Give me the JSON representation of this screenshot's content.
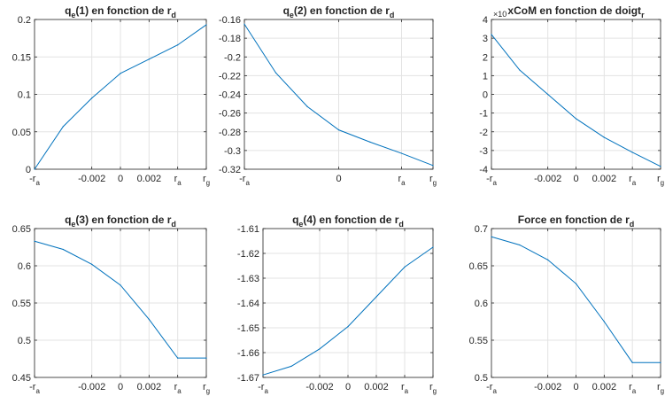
{
  "figure": {
    "line_color": "#0072BD",
    "grid_color": "#e3e3e3",
    "axis_color": "#262626"
  },
  "chart_data": [
    {
      "type": "line",
      "title": [
        "q",
        "e",
        "(1) en fonction de r",
        "d"
      ],
      "x": [
        -0.0045,
        -0.003,
        -0.0015,
        0,
        0.0015,
        0.003,
        0.0045
      ],
      "values": [
        0.0,
        0.057,
        0.095,
        0.128,
        0.147,
        0.166,
        0.193
      ],
      "xlim": [
        -0.0045,
        0.0045
      ],
      "ylim": [
        0,
        0.2
      ],
      "xticks": [
        {
          "v": -0.0045,
          "label": [
            "-r",
            "a"
          ]
        },
        {
          "v": -0.0015,
          "label": [
            "-0.002",
            ""
          ]
        },
        {
          "v": 0,
          "label": [
            "0",
            ""
          ]
        },
        {
          "v": 0.0015,
          "label": [
            "0.002",
            ""
          ]
        },
        {
          "v": 0.003,
          "label": [
            "r",
            "a"
          ]
        },
        {
          "v": 0.0045,
          "label": [
            "r",
            "g"
          ]
        }
      ],
      "yticks": [
        {
          "v": 0,
          "label": "0"
        },
        {
          "v": 0.05,
          "label": "0.05"
        },
        {
          "v": 0.1,
          "label": "0.1"
        },
        {
          "v": 0.15,
          "label": "0.15"
        },
        {
          "v": 0.2,
          "label": "0.2"
        }
      ],
      "exponent": "",
      "grid": true
    },
    {
      "type": "line",
      "title": [
        "q",
        "e",
        "(2) en fonction de r",
        "d"
      ],
      "x": [
        -0.0045,
        -0.003,
        -0.0015,
        0,
        0.0015,
        0.003,
        0.0045
      ],
      "values": [
        -0.165,
        -0.217,
        -0.253,
        -0.278,
        -0.291,
        -0.303,
        -0.316
      ],
      "xlim": [
        -0.0045,
        0.0045
      ],
      "ylim": [
        -0.32,
        -0.16
      ],
      "xticks": [
        {
          "v": -0.0045,
          "label": [
            "-r",
            "a"
          ]
        },
        {
          "v": 0,
          "label": [
            "0",
            ""
          ]
        },
        {
          "v": 0.003,
          "label": [
            "r",
            "a"
          ]
        },
        {
          "v": 0.0045,
          "label": [
            "r",
            "g"
          ]
        }
      ],
      "yticks": [
        {
          "v": -0.32,
          "label": "-0.32"
        },
        {
          "v": -0.3,
          "label": "-0.3"
        },
        {
          "v": -0.28,
          "label": "-0.28"
        },
        {
          "v": -0.26,
          "label": "-0.26"
        },
        {
          "v": -0.24,
          "label": "-0.24"
        },
        {
          "v": -0.22,
          "label": "-0.22"
        },
        {
          "v": -0.2,
          "label": "-0.2"
        },
        {
          "v": -0.18,
          "label": "-0.18"
        },
        {
          "v": -0.16,
          "label": "-0.16"
        }
      ],
      "exponent": "",
      "grid": true
    },
    {
      "type": "line",
      "title": [
        "xCoM en fonction de doigt",
        "r"
      ],
      "x": [
        -0.0045,
        -0.003,
        -0.0015,
        0,
        0.0015,
        0.003,
        0.0045
      ],
      "values": [
        3.2,
        1.3,
        0.0,
        -1.3,
        -2.3,
        -3.1,
        -3.85
      ],
      "xlim": [
        -0.0045,
        0.0045
      ],
      "ylim": [
        -4,
        4
      ],
      "xticks": [
        {
          "v": -0.0045,
          "label": [
            "-r",
            "a"
          ]
        },
        {
          "v": -0.0015,
          "label": [
            "-0.002",
            ""
          ]
        },
        {
          "v": 0,
          "label": [
            "0",
            ""
          ]
        },
        {
          "v": 0.0015,
          "label": [
            "0.002",
            ""
          ]
        },
        {
          "v": 0.003,
          "label": [
            "r",
            "a"
          ]
        },
        {
          "v": 0.0045,
          "label": [
            "r",
            "g"
          ]
        }
      ],
      "yticks": [
        {
          "v": -4,
          "label": "-4"
        },
        {
          "v": -3,
          "label": "-3"
        },
        {
          "v": -2,
          "label": "-2"
        },
        {
          "v": -1,
          "label": "-1"
        },
        {
          "v": 0,
          "label": "0"
        },
        {
          "v": 1,
          "label": "1"
        },
        {
          "v": 2,
          "label": "2"
        },
        {
          "v": 3,
          "label": "3"
        },
        {
          "v": 4,
          "label": "4"
        }
      ],
      "exponent": "×10",
      "grid": true
    },
    {
      "type": "line",
      "title": [
        "q",
        "e",
        "(3) en fonction de r",
        "d"
      ],
      "x": [
        -0.0045,
        -0.003,
        -0.0015,
        0,
        0.0015,
        0.003,
        0.0045
      ],
      "values": [
        0.633,
        0.622,
        0.602,
        0.574,
        0.528,
        0.476,
        0.476
      ],
      "xlim": [
        -0.0045,
        0.0045
      ],
      "ylim": [
        0.45,
        0.65
      ],
      "xticks": [
        {
          "v": -0.0045,
          "label": [
            "-r",
            "a"
          ]
        },
        {
          "v": -0.0015,
          "label": [
            "-0.002",
            ""
          ]
        },
        {
          "v": 0,
          "label": [
            "0",
            ""
          ]
        },
        {
          "v": 0.0015,
          "label": [
            "0.002",
            ""
          ]
        },
        {
          "v": 0.003,
          "label": [
            "r",
            "a"
          ]
        },
        {
          "v": 0.0045,
          "label": [
            "r",
            "g"
          ]
        }
      ],
      "yticks": [
        {
          "v": 0.45,
          "label": "0.45"
        },
        {
          "v": 0.5,
          "label": "0.5"
        },
        {
          "v": 0.55,
          "label": "0.55"
        },
        {
          "v": 0.6,
          "label": "0.6"
        },
        {
          "v": 0.65,
          "label": "0.65"
        }
      ],
      "exponent": "",
      "grid": true
    },
    {
      "type": "line",
      "title": [
        "q",
        "e",
        "(4) en fonction de r",
        "d"
      ],
      "x": [
        -0.0045,
        -0.003,
        -0.0015,
        0,
        0.0015,
        0.003,
        0.0045
      ],
      "values": [
        -1.669,
        -1.6655,
        -1.6585,
        -1.6495,
        -1.6375,
        -1.6255,
        -1.6175
      ],
      "xlim": [
        -0.0045,
        0.0045
      ],
      "ylim": [
        -1.67,
        -1.61
      ],
      "xticks": [
        {
          "v": -0.0045,
          "label": [
            "-r",
            "a"
          ]
        },
        {
          "v": -0.0015,
          "label": [
            "-0.002",
            ""
          ]
        },
        {
          "v": 0,
          "label": [
            "0",
            ""
          ]
        },
        {
          "v": 0.0015,
          "label": [
            "0.002",
            ""
          ]
        },
        {
          "v": 0.003,
          "label": [
            "r",
            "a"
          ]
        },
        {
          "v": 0.0045,
          "label": [
            "r",
            "g"
          ]
        }
      ],
      "yticks": [
        {
          "v": -1.67,
          "label": "-1.67"
        },
        {
          "v": -1.66,
          "label": "-1.66"
        },
        {
          "v": -1.65,
          "label": "-1.65"
        },
        {
          "v": -1.64,
          "label": "-1.64"
        },
        {
          "v": -1.63,
          "label": "-1.63"
        },
        {
          "v": -1.62,
          "label": "-1.62"
        },
        {
          "v": -1.61,
          "label": "-1.61"
        }
      ],
      "exponent": "",
      "grid": true
    },
    {
      "type": "line",
      "title": [
        "Force en fonction de r",
        "d"
      ],
      "x": [
        -0.0045,
        -0.003,
        -0.0015,
        0,
        0.0015,
        0.003,
        0.0045
      ],
      "values": [
        0.689,
        0.678,
        0.658,
        0.626,
        0.575,
        0.52,
        0.52
      ],
      "xlim": [
        -0.0045,
        0.0045
      ],
      "ylim": [
        0.5,
        0.7
      ],
      "xticks": [
        {
          "v": -0.0045,
          "label": [
            "-r",
            "a"
          ]
        },
        {
          "v": -0.0015,
          "label": [
            "-0.002",
            ""
          ]
        },
        {
          "v": 0,
          "label": [
            "0",
            ""
          ]
        },
        {
          "v": 0.0015,
          "label": [
            "0.002",
            ""
          ]
        },
        {
          "v": 0.003,
          "label": [
            "r",
            "a"
          ]
        },
        {
          "v": 0.0045,
          "label": [
            "r",
            "g"
          ]
        }
      ],
      "yticks": [
        {
          "v": 0.5,
          "label": "0.5"
        },
        {
          "v": 0.55,
          "label": "0.55"
        },
        {
          "v": 0.6,
          "label": "0.6"
        },
        {
          "v": 0.65,
          "label": "0.65"
        },
        {
          "v": 0.7,
          "label": "0.7"
        }
      ],
      "exponent": "",
      "grid": true
    }
  ]
}
